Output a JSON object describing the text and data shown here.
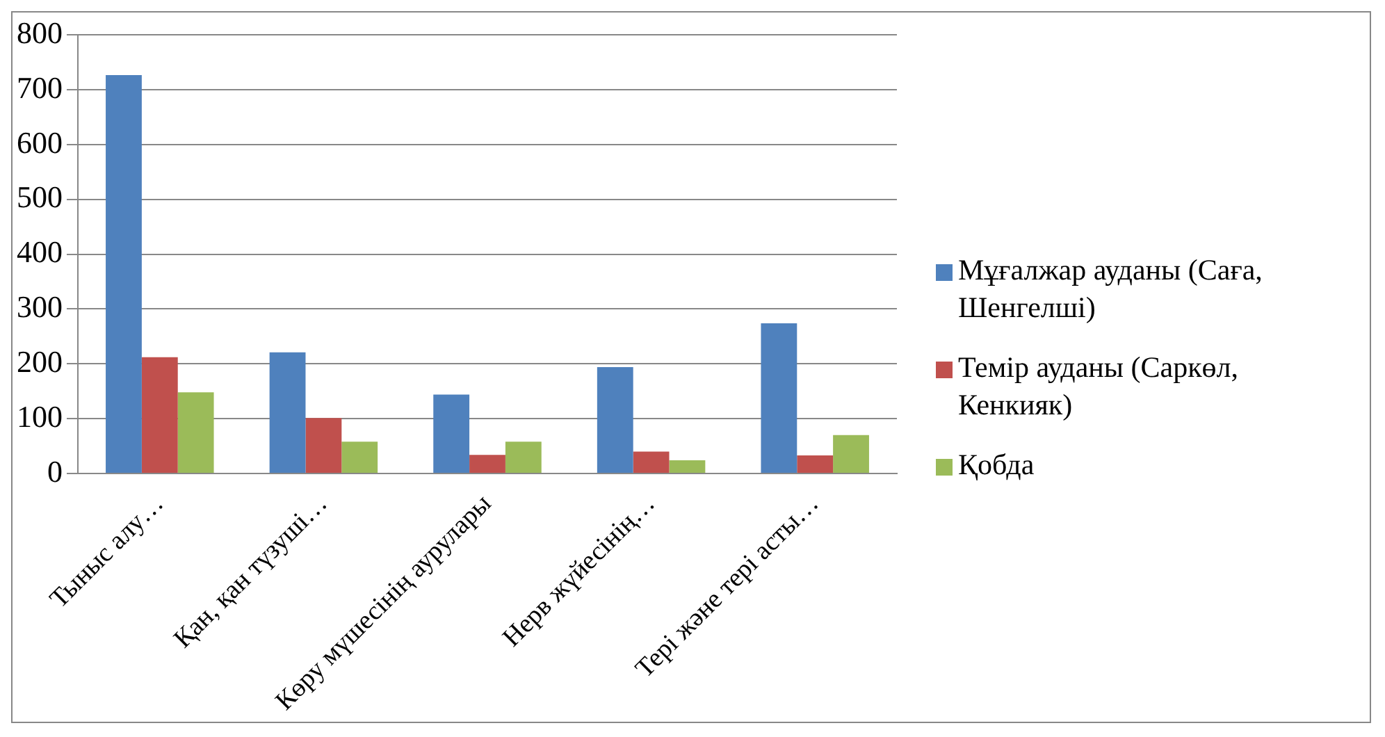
{
  "chart_data": {
    "type": "bar",
    "categories": [
      "Тыныс алу…",
      "Қан, қан түзуші…",
      "Көру мүшесінің аурулары",
      "Нерв жүйесінің…",
      "Тері және тері асты…"
    ],
    "series": [
      {
        "name": "Мұғалжар ауданы  (Саға, Шенгелші)",
        "color": "#4f81bd",
        "values": [
          727,
          221,
          144,
          194,
          274
        ]
      },
      {
        "name": "Темір  ауданы  (Саркөл, Кенкияк)",
        "color": "#c0504d",
        "values": [
          212,
          101,
          34,
          40,
          33
        ]
      },
      {
        "name": "Қобда",
        "color": "#9bbb59",
        "values": [
          148,
          58,
          58,
          24,
          70
        ]
      }
    ],
    "ylim": [
      0,
      800
    ],
    "yticks": [
      0,
      100,
      200,
      300,
      400,
      500,
      600,
      700,
      800
    ],
    "grid": "y",
    "legend": "right"
  }
}
